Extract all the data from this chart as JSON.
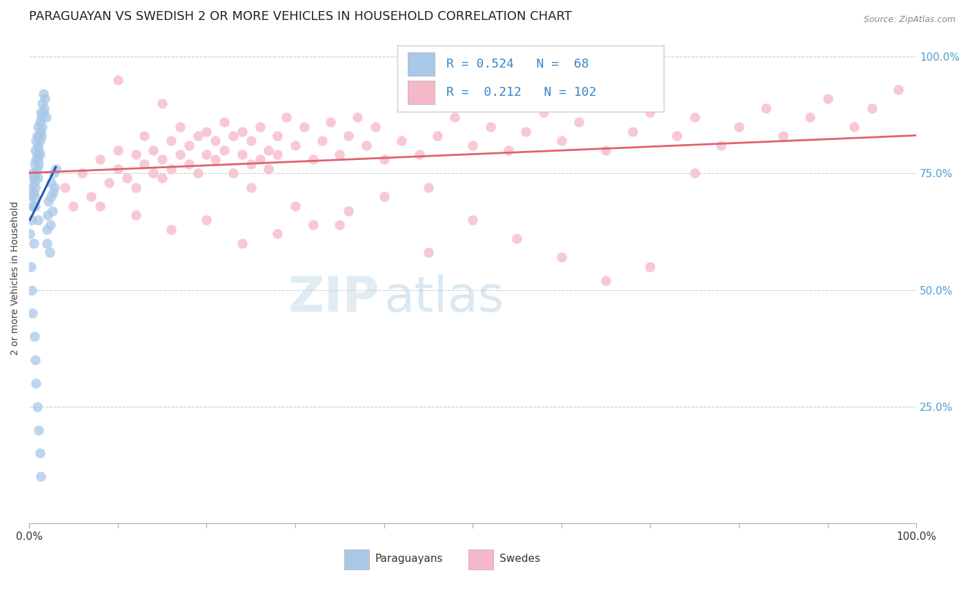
{
  "title": "PARAGUAYAN VS SWEDISH 2 OR MORE VEHICLES IN HOUSEHOLD CORRELATION CHART",
  "source": "Source: ZipAtlas.com",
  "ylabel": "2 or more Vehicles in Household",
  "r_paraguayan": 0.524,
  "n_paraguayan": 68,
  "r_swedish": 0.212,
  "n_swedish": 102,
  "legend_label1": "Paraguayans",
  "legend_label2": "Swedes",
  "paraguayan_color": "#a8c8e8",
  "swedish_color": "#f5b8c8",
  "trendline_paraguayan": "#2255bb",
  "trendline_swedish": "#e06070",
  "background_color": "#ffffff",
  "grid_color": "#cccccc",
  "ytick_positions": [
    1.0,
    0.75,
    0.5,
    0.25
  ],
  "ytick_labels": [
    "100.0%",
    "75.0%",
    "50.0%",
    "25.0%"
  ],
  "par_x": [
    0.001,
    0.002,
    0.003,
    0.003,
    0.004,
    0.004,
    0.005,
    0.005,
    0.005,
    0.006,
    0.006,
    0.006,
    0.007,
    0.007,
    0.007,
    0.007,
    0.008,
    0.008,
    0.008,
    0.009,
    0.009,
    0.009,
    0.01,
    0.01,
    0.01,
    0.01,
    0.011,
    0.011,
    0.011,
    0.012,
    0.012,
    0.012,
    0.013,
    0.013,
    0.014,
    0.014,
    0.015,
    0.015,
    0.016,
    0.016,
    0.017,
    0.018,
    0.019,
    0.02,
    0.02,
    0.021,
    0.022,
    0.023,
    0.024,
    0.025,
    0.025,
    0.026,
    0.027,
    0.028,
    0.029,
    0.03,
    0.002,
    0.003,
    0.004,
    0.005,
    0.006,
    0.007,
    0.008,
    0.009,
    0.01,
    0.011,
    0.012,
    0.013
  ],
  "par_y": [
    0.62,
    0.7,
    0.65,
    0.72,
    0.68,
    0.75,
    0.71,
    0.74,
    0.68,
    0.73,
    0.7,
    0.77,
    0.72,
    0.74,
    0.68,
    0.8,
    0.75,
    0.78,
    0.82,
    0.76,
    0.79,
    0.83,
    0.78,
    0.81,
    0.85,
    0.74,
    0.8,
    0.83,
    0.77,
    0.82,
    0.86,
    0.79,
    0.84,
    0.88,
    0.83,
    0.87,
    0.85,
    0.9,
    0.88,
    0.92,
    0.89,
    0.91,
    0.87,
    0.6,
    0.63,
    0.66,
    0.69,
    0.58,
    0.64,
    0.7,
    0.73,
    0.67,
    0.71,
    0.75,
    0.72,
    0.76,
    0.55,
    0.5,
    0.45,
    0.6,
    0.4,
    0.35,
    0.3,
    0.25,
    0.65,
    0.2,
    0.15,
    0.1
  ],
  "swe_x": [
    0.04,
    0.05,
    0.06,
    0.07,
    0.08,
    0.09,
    0.1,
    0.1,
    0.11,
    0.12,
    0.12,
    0.13,
    0.13,
    0.14,
    0.14,
    0.15,
    0.15,
    0.16,
    0.16,
    0.17,
    0.17,
    0.18,
    0.18,
    0.19,
    0.19,
    0.2,
    0.2,
    0.21,
    0.21,
    0.22,
    0.22,
    0.23,
    0.23,
    0.24,
    0.24,
    0.25,
    0.25,
    0.26,
    0.26,
    0.27,
    0.27,
    0.28,
    0.28,
    0.29,
    0.3,
    0.31,
    0.32,
    0.33,
    0.34,
    0.35,
    0.36,
    0.37,
    0.38,
    0.39,
    0.4,
    0.42,
    0.44,
    0.46,
    0.48,
    0.5,
    0.52,
    0.54,
    0.56,
    0.58,
    0.6,
    0.62,
    0.65,
    0.68,
    0.7,
    0.73,
    0.75,
    0.78,
    0.8,
    0.83,
    0.85,
    0.88,
    0.9,
    0.93,
    0.95,
    0.98,
    0.08,
    0.12,
    0.16,
    0.2,
    0.24,
    0.28,
    0.32,
    0.36,
    0.4,
    0.45,
    0.5,
    0.55,
    0.6,
    0.65,
    0.7,
    0.75,
    0.25,
    0.3,
    0.35,
    0.1,
    0.15,
    0.45
  ],
  "swe_y": [
    0.72,
    0.68,
    0.75,
    0.7,
    0.78,
    0.73,
    0.76,
    0.8,
    0.74,
    0.79,
    0.72,
    0.77,
    0.83,
    0.75,
    0.8,
    0.74,
    0.78,
    0.82,
    0.76,
    0.79,
    0.85,
    0.77,
    0.81,
    0.75,
    0.83,
    0.79,
    0.84,
    0.78,
    0.82,
    0.86,
    0.8,
    0.75,
    0.83,
    0.79,
    0.84,
    0.77,
    0.82,
    0.78,
    0.85,
    0.8,
    0.76,
    0.83,
    0.79,
    0.87,
    0.81,
    0.85,
    0.78,
    0.82,
    0.86,
    0.79,
    0.83,
    0.87,
    0.81,
    0.85,
    0.78,
    0.82,
    0.79,
    0.83,
    0.87,
    0.81,
    0.85,
    0.8,
    0.84,
    0.88,
    0.82,
    0.86,
    0.8,
    0.84,
    0.88,
    0.83,
    0.87,
    0.81,
    0.85,
    0.89,
    0.83,
    0.87,
    0.91,
    0.85,
    0.89,
    0.93,
    0.68,
    0.66,
    0.63,
    0.65,
    0.6,
    0.62,
    0.64,
    0.67,
    0.7,
    0.72,
    0.65,
    0.61,
    0.57,
    0.52,
    0.55,
    0.75,
    0.72,
    0.68,
    0.64,
    0.95,
    0.9,
    0.58
  ]
}
